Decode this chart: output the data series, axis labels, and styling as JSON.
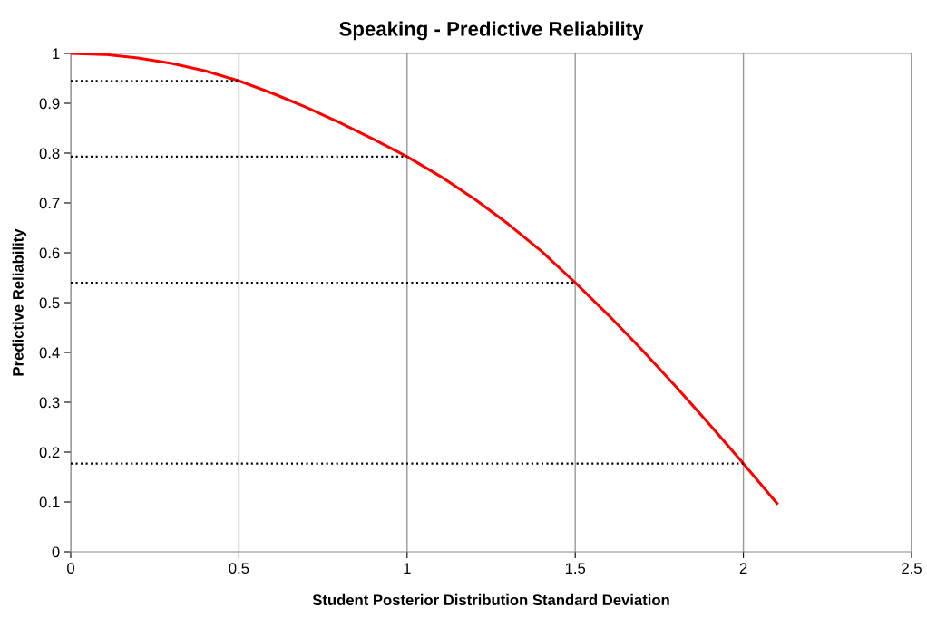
{
  "chart_data": {
    "type": "line",
    "title": "Speaking - Predictive Reliability",
    "xlabel": "Student Posterior Distribution Standard Deviation",
    "ylabel": "Predictive Reliability",
    "series": [
      {
        "color": "#ff0000",
        "line_style": "solid",
        "x": [
          0,
          0.1,
          0.2,
          0.3,
          0.4,
          0.5,
          0.6,
          0.7,
          0.8,
          0.9,
          1.0,
          1.1,
          1.2,
          1.3,
          1.4,
          1.5,
          1.6,
          1.7,
          1.8,
          1.9,
          2.0,
          2.1
        ],
        "values": [
          1.0,
          0.998,
          0.991,
          0.98,
          0.965,
          0.945,
          0.92,
          0.892,
          0.861,
          0.828,
          0.793,
          0.753,
          0.708,
          0.658,
          0.603,
          0.54,
          0.474,
          0.404,
          0.331,
          0.255,
          0.177,
          0.097
        ]
      },
      {
        "color": "#000000",
        "line_style": "dotted",
        "x": [
          0,
          0.5
        ],
        "values": [
          0.945,
          0.945
        ]
      },
      {
        "color": "#000000",
        "line_style": "dotted",
        "x": [
          0,
          1.0
        ],
        "values": [
          0.793,
          0.793
        ]
      },
      {
        "color": "#000000",
        "line_style": "dotted",
        "x": [
          0,
          1.5
        ],
        "values": [
          0.54,
          0.54
        ]
      },
      {
        "color": "#000000",
        "line_style": "dotted",
        "x": [
          0,
          2.0
        ],
        "values": [
          0.177,
          0.177
        ]
      }
    ],
    "xlim": [
      0,
      2.5
    ],
    "xticks": [
      0,
      0.5,
      1,
      1.5,
      2,
      2.5
    ],
    "ylim": [
      0,
      1
    ],
    "yticks": [
      0,
      0.1,
      0.2,
      0.3,
      0.4,
      0.5,
      0.6,
      0.7,
      0.8,
      0.9,
      1
    ],
    "grid": "x",
    "marker": "none"
  }
}
